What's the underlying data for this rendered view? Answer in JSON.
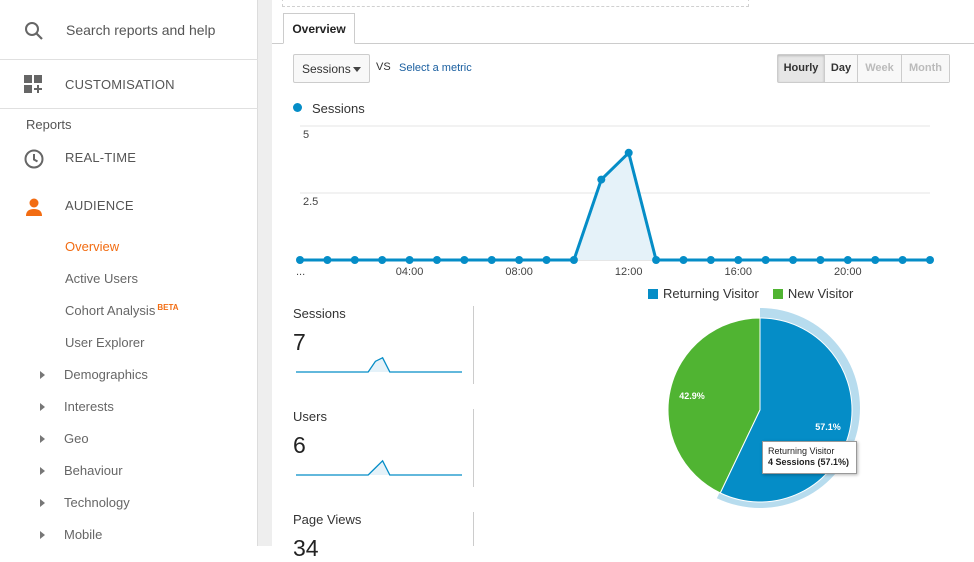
{
  "sidebar": {
    "search_placeholder": "Search reports and help",
    "customisation": "CUSTOMISATION",
    "reports_label": "Reports",
    "realtime": "REAL-TIME",
    "audience": "AUDIENCE",
    "audience_items": [
      "Overview",
      "Active Users",
      "Cohort Analysis",
      "User Explorer"
    ],
    "beta": "BETA",
    "expandable": [
      "Demographics",
      "Interests",
      "Geo",
      "Behaviour",
      "Technology",
      "Mobile"
    ],
    "accent_color": "#f26c12"
  },
  "main": {
    "tab": "Overview",
    "metric_select": "Sessions",
    "vs": "VS",
    "select_metric": "Select a metric",
    "time_buttons": [
      "Hourly",
      "Day",
      "Week",
      "Month"
    ],
    "active_time": "Hourly",
    "disabled_time": [
      "Week",
      "Month"
    ]
  },
  "chart_data": {
    "type": "area",
    "series": [
      {
        "name": "Sessions",
        "color": "#058dc7",
        "values": [
          0,
          0,
          0,
          0,
          0,
          0,
          0,
          0,
          0,
          0,
          0,
          3,
          4,
          0,
          0,
          0,
          0,
          0,
          0,
          0,
          0,
          0,
          0,
          0
        ]
      }
    ],
    "x": [
      0,
      1,
      2,
      3,
      4,
      5,
      6,
      7,
      8,
      9,
      10,
      11,
      12,
      13,
      14,
      15,
      16,
      17,
      18,
      19,
      20,
      21,
      22,
      23
    ],
    "x_tick_labels": [
      "...",
      "04:00",
      "08:00",
      "12:00",
      "16:00",
      "20:00"
    ],
    "y_ticks": [
      "5",
      "2.5"
    ],
    "ylim": [
      0,
      5
    ]
  },
  "sparklines": [
    {
      "label": "Sessions",
      "value": "7",
      "shape": [
        0,
        0,
        0,
        0,
        0,
        0,
        0,
        0,
        0,
        0,
        0,
        3,
        4,
        0,
        0,
        0,
        0,
        0,
        0,
        0,
        0,
        0,
        0,
        0
      ]
    },
    {
      "label": "Users",
      "value": "6",
      "shape": [
        0,
        0,
        0,
        0,
        0,
        0,
        0,
        0,
        0,
        0,
        0,
        2,
        4,
        0,
        0,
        0,
        0,
        0,
        0,
        0,
        0,
        0,
        0,
        0
      ]
    },
    {
      "label": "Page Views",
      "value": "34"
    }
  ],
  "pie": {
    "legend": [
      {
        "name": "Returning Visitor",
        "color": "#058dc7"
      },
      {
        "name": "New Visitor",
        "color": "#50b432"
      }
    ],
    "slices": [
      {
        "name": "Returning Visitor",
        "pct": 57.1,
        "label": "57.1%"
      },
      {
        "name": "New Visitor",
        "pct": 42.9,
        "label": "42.9%"
      }
    ],
    "tooltip_title": "Returning Visitor",
    "tooltip_value": "4 Sessions (57.1%)"
  }
}
